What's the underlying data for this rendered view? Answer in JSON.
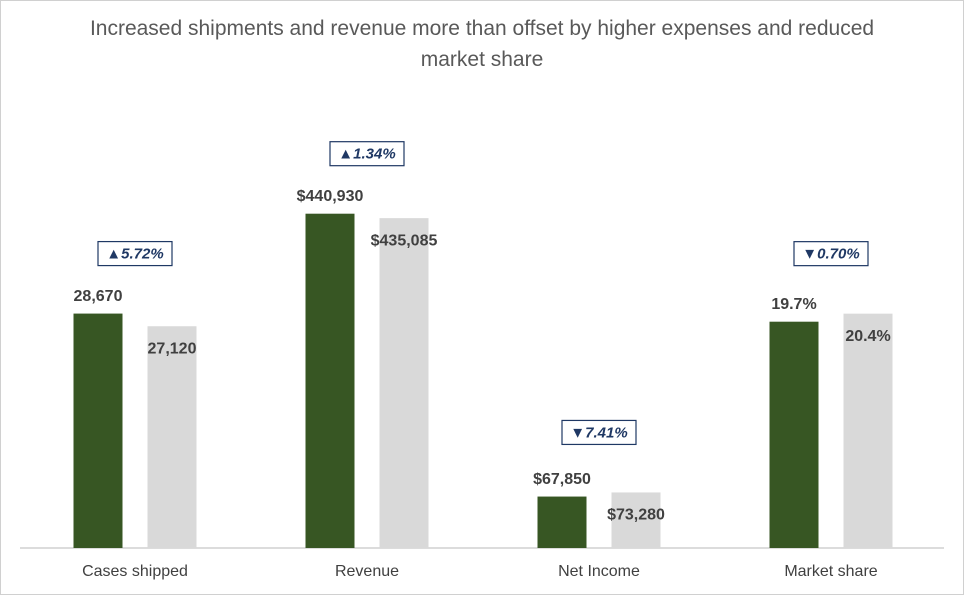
{
  "chart_data": {
    "type": "bar",
    "title": "Increased shipments and revenue more than offset by higher expenses and reduced market share",
    "categories": [
      "Cases shipped",
      "Revenue",
      "Net Income",
      "Market share"
    ],
    "series": [
      {
        "color": "#375623",
        "values": [
          28670,
          440930,
          67850,
          19.7
        ],
        "value_labels": [
          "28,670",
          "$440,930",
          "$67,850",
          "19.7%"
        ]
      },
      {
        "color": "#d9d9d9",
        "values": [
          27120,
          435085,
          73280,
          20.4
        ],
        "value_labels": [
          "27,120",
          "$435,085",
          "$73,280",
          "20.4%"
        ]
      }
    ],
    "ylims": [
      [
        0,
        51000
      ],
      [
        0,
        550000
      ],
      [
        0,
        550000
      ],
      [
        0,
        36.3
      ]
    ],
    "change_labels": [
      "▲5.72%",
      "▲1.34%",
      "▼7.41%",
      "▼0.70%"
    ]
  }
}
